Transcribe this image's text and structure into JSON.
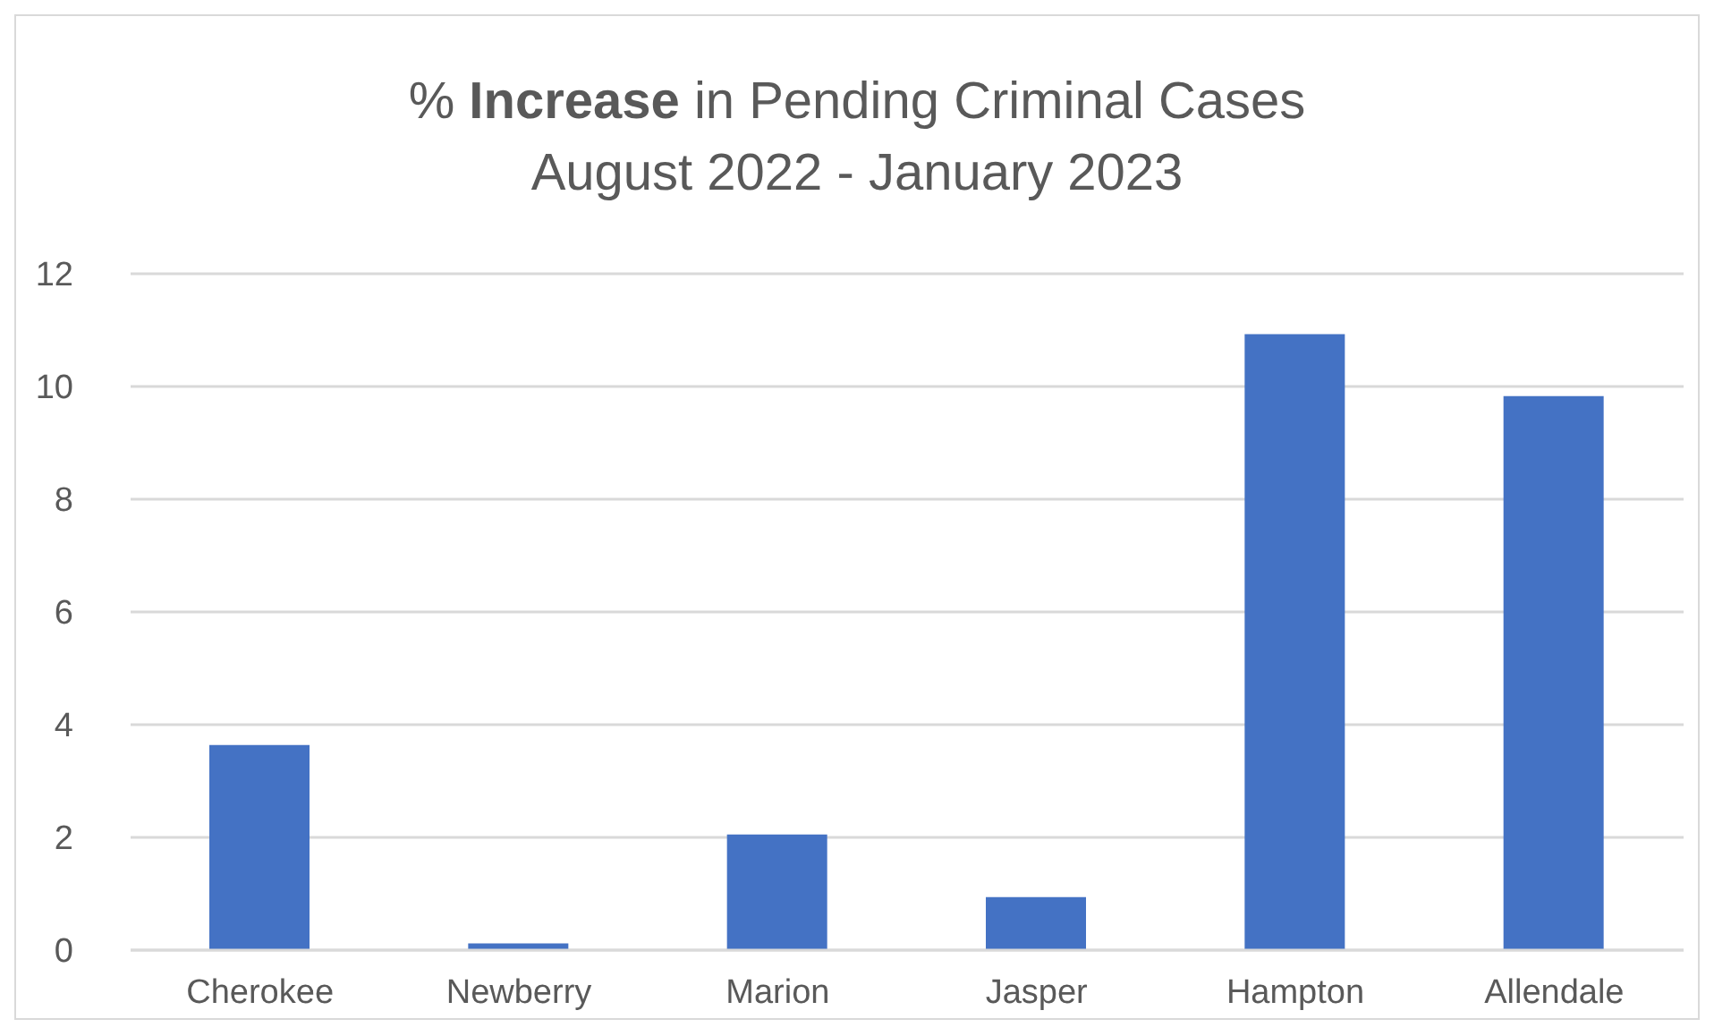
{
  "chart_data": {
    "type": "bar",
    "title": "% Increase in Pending Criminal Cases",
    "subtitle": "August 2022 - January 2023",
    "categories": [
      "Cherokee",
      "Newberry",
      "Marion",
      "Jasper",
      "Hampton",
      "Allendale"
    ],
    "values": [
      3.64,
      0.12,
      2.05,
      0.94,
      10.93,
      9.83
    ],
    "color": "#4472c4",
    "ylim": [
      0,
      12
    ],
    "yticks": [
      0,
      2,
      4,
      6,
      8,
      10,
      12
    ],
    "grid": "y"
  }
}
